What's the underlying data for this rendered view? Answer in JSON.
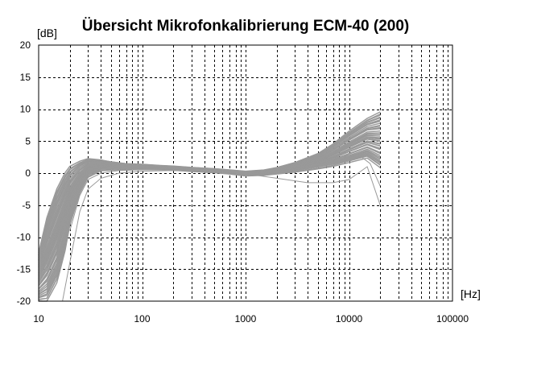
{
  "chart_data": {
    "type": "line",
    "title": "Übersicht Mikrofonkalibrierung ECM-40 (200)",
    "ylabel": "[dB]",
    "xlabel": "[Hz]",
    "x_scale": "log",
    "xlim": [
      10,
      100000
    ],
    "ylim": [
      -20,
      20
    ],
    "grid": true,
    "grid_style": "dashed",
    "x_ticks": [
      "10",
      "100",
      "1000",
      "10000",
      "100000"
    ],
    "y_ticks": [
      "20",
      "15",
      "10",
      "5",
      "0",
      "-5",
      "-10",
      "-15",
      "-20"
    ],
    "series_color": "#999999",
    "series_count": 200,
    "envelope": {
      "x": [
        10,
        12,
        15,
        18,
        20,
        25,
        30,
        40,
        50,
        70,
        100,
        150,
        200,
        300,
        500,
        700,
        1000,
        1500,
        2000,
        3000,
        5000,
        7000,
        10000,
        15000,
        20000
      ],
      "upper": [
        -12.5,
        -7,
        -2.5,
        0,
        1,
        1.8,
        2.2,
        2.0,
        1.7,
        1.4,
        1.3,
        1.1,
        1.0,
        0.8,
        0.6,
        0.4,
        0.2,
        0.4,
        0.8,
        1.6,
        3.0,
        4.5,
        6.5,
        8.5,
        9.5
      ],
      "lower": [
        -20,
        -20,
        -17,
        -12,
        -8,
        -3,
        -0.5,
        0.5,
        0.6,
        0.7,
        0.8,
        0.7,
        0.6,
        0.4,
        0.2,
        0.0,
        -0.3,
        -0.2,
        0.0,
        0.3,
        0.8,
        1.2,
        1.8,
        2.5,
        1.0
      ]
    },
    "outliers": [
      {
        "x": [
          17,
          20,
          25,
          30,
          40,
          60,
          100,
          200,
          500,
          1000,
          2000,
          4000,
          7000,
          10000,
          15000,
          20000
        ],
        "y": [
          -20,
          -14,
          -6,
          -2.5,
          -0.8,
          0,
          0.3,
          0.4,
          0.2,
          -0.1,
          -0.8,
          -1.5,
          -1.5,
          -1.0,
          1.0,
          -5.0
        ]
      },
      {
        "x": [
          20,
          25,
          30,
          40,
          60,
          100,
          200,
          500,
          1000,
          2000,
          4000,
          8000,
          12000,
          16000,
          20000
        ],
        "y": [
          -9,
          -3.5,
          -1,
          0,
          0.4,
          0.5,
          0.5,
          0.3,
          0.0,
          0.6,
          1.5,
          2.5,
          3.0,
          1.5,
          -2.0
        ]
      },
      {
        "x": [
          15,
          18,
          22,
          28,
          35,
          50,
          80,
          150,
          400,
          1000,
          3000,
          8000,
          15000,
          20000
        ],
        "y": [
          -13,
          -7,
          -2,
          0.8,
          1.0,
          0.8,
          0.6,
          0.6,
          0.4,
          0.0,
          0.8,
          2.0,
          3.5,
          2.5
        ]
      }
    ]
  }
}
